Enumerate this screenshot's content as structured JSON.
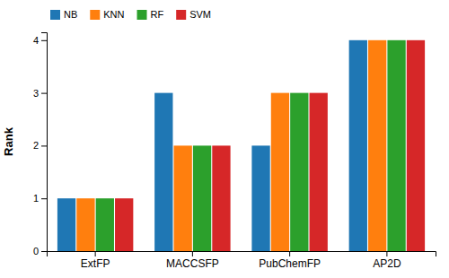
{
  "chart_data": {
    "type": "bar",
    "ylabel": "Rank",
    "categories": [
      "ExtFP",
      "MACCSFP",
      "PubChemFP",
      "AP2D"
    ],
    "series": [
      {
        "name": "NB",
        "values": [
          1,
          3,
          2,
          4
        ]
      },
      {
        "name": "KNN",
        "values": [
          1,
          2,
          3,
          4
        ]
      },
      {
        "name": "RF",
        "values": [
          1,
          2,
          3,
          4
        ]
      },
      {
        "name": "SVM",
        "values": [
          1,
          2,
          3,
          4
        ]
      }
    ],
    "ylim": [
      0,
      4.15
    ],
    "yticks": [
      0,
      1,
      2,
      3,
      4
    ],
    "grid": false,
    "legend": "upper left"
  }
}
